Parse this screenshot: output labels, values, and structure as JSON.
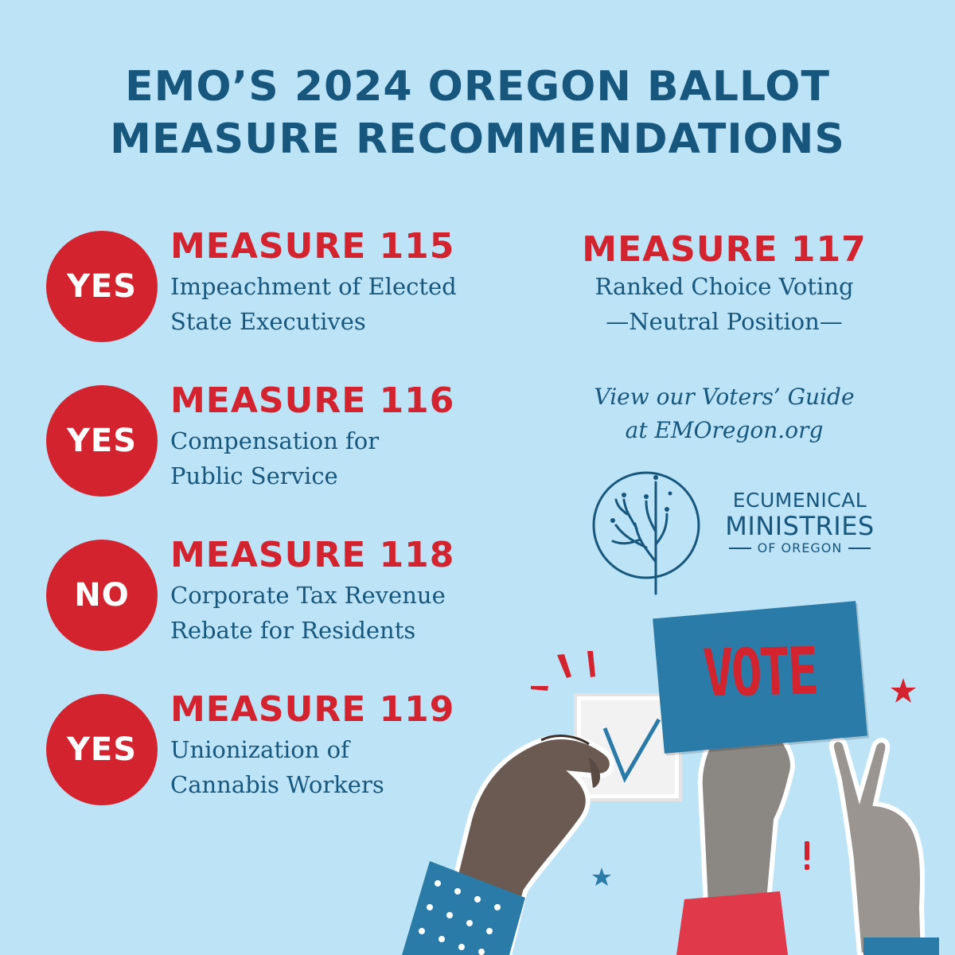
{
  "title": {
    "line1": "EMO’S 2024 OREGON BALLOT",
    "line2": "MEASURE RECOMMENDATIONS"
  },
  "measures": [
    {
      "badge": "YES",
      "title": "MEASURE 115",
      "desc_line1": "Impeachment of Elected",
      "desc_line2": "State Executives"
    },
    {
      "badge": "YES",
      "title": "MEASURE 116",
      "desc_line1": "Compensation for",
      "desc_line2": "Public Service"
    },
    {
      "badge": "NO",
      "title": "MEASURE 118",
      "desc_line1": "Corporate Tax Revenue",
      "desc_line2": "Rebate for Residents"
    },
    {
      "badge": "YES",
      "title": "MEASURE 119",
      "desc_line1": "Unionization of",
      "desc_line2": "Cannabis Workers"
    }
  ],
  "measure117": {
    "title": "MEASURE 117",
    "desc_line1": "Ranked Choice Voting",
    "desc_line2": "—Neutral Position—"
  },
  "guide": {
    "line1": "View our Voters’ Guide",
    "line2": "at EMOregon.org"
  },
  "logo": {
    "icon": "tree-circle-icon",
    "line1": "ECUMENICAL",
    "line2": "MINISTRIES",
    "line3": "OF OREGON"
  },
  "illustration": {
    "sign_text": "VOTE",
    "check_icon": "checkmark-icon",
    "hands": [
      "hand-holding-ballot",
      "hand-holding-sign",
      "peace-sign-hand"
    ]
  },
  "colors": {
    "background": "#bde3f7",
    "navy": "#17577e",
    "red": "#d2232f",
    "sign_blue": "#2b7ba8"
  }
}
